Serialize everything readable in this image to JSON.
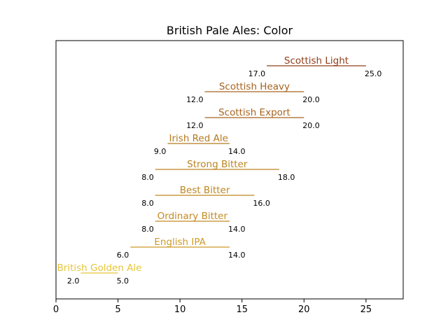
{
  "chart_data": {
    "type": "range",
    "title": "British Pale Ales: Color",
    "xlabel": "",
    "ylabel": "",
    "xlim": [
      0,
      28
    ],
    "xticks": [
      0,
      5,
      10,
      15,
      20,
      25
    ],
    "grid": false,
    "series": [
      {
        "name": "British Golden Ale",
        "min": 2.0,
        "max": 5.0,
        "min_label": "2.0",
        "max_label": "5.0",
        "color": "#e5c53a"
      },
      {
        "name": "English IPA",
        "min": 6.0,
        "max": 14.0,
        "min_label": "6.0",
        "max_label": "14.0",
        "color": "#cf9a28"
      },
      {
        "name": "Ordinary Bitter",
        "min": 8.0,
        "max": 14.0,
        "min_label": "8.0",
        "max_label": "14.0",
        "color": "#c48a22"
      },
      {
        "name": "Best Bitter",
        "min": 8.0,
        "max": 16.0,
        "min_label": "8.0",
        "max_label": "16.0",
        "color": "#bf861f"
      },
      {
        "name": "Strong Bitter",
        "min": 8.0,
        "max": 18.0,
        "min_label": "8.0",
        "max_label": "18.0",
        "color": "#bd8420"
      },
      {
        "name": "Irish Red Ale",
        "min": 9.0,
        "max": 14.0,
        "min_label": "9.0",
        "max_label": "14.0",
        "color": "#b5791e"
      },
      {
        "name": "Scottish Export",
        "min": 12.0,
        "max": 20.0,
        "min_label": "12.0",
        "max_label": "20.0",
        "color": "#a8651f"
      },
      {
        "name": "Scottish Heavy",
        "min": 12.0,
        "max": 20.0,
        "min_label": "12.0",
        "max_label": "20.0",
        "color": "#a6631e"
      },
      {
        "name": "Scottish Light",
        "min": 17.0,
        "max": 25.0,
        "min_label": "17.0",
        "max_label": "25.0",
        "color": "#8f3f1b"
      }
    ]
  }
}
